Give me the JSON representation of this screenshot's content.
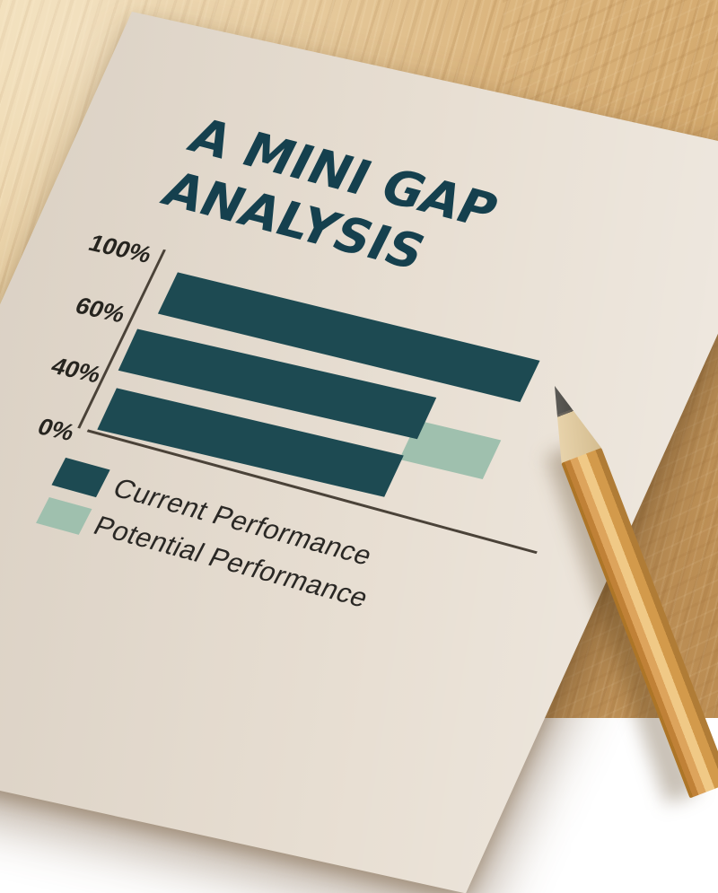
{
  "scene": {
    "objects": [
      "cream paper sheet lying at an angle on a wooden desk",
      "sharpened wooden pencil pointing at the end of the top bar"
    ],
    "desk_wood_color": "#dbb57e",
    "paper_color": "#e8dfd3",
    "pencil_wood_color": "#dda45c",
    "pencil_tip_color": "#3d3b36"
  },
  "title": {
    "line1": "A MINI GAP",
    "line2": "ANALYSIS",
    "color": "#15404e"
  },
  "chart_data": {
    "type": "bar",
    "orientation": "horizontal",
    "title": "A MINI GAP ANALYSIS",
    "y_axis_tick_labels": [
      "100%",
      "60%",
      "40%",
      "0%"
    ],
    "x_axis_shown": "baseline only, no tick labels",
    "grid": false,
    "axis_range_pct": [
      0,
      100
    ],
    "bars": [
      {
        "series": "Current Performance",
        "pct": 100
      },
      {
        "series": "Current Performance",
        "pct": 82
      },
      {
        "series": "Current Performance",
        "pct": 79
      }
    ],
    "potential_segment": {
      "series": "Potential Performance",
      "attached_to_bar_index": 1,
      "start_pct": 80,
      "end_pct": 103,
      "note": "light sage block tucked under the end of a dark bar, offset down-right"
    },
    "colors": {
      "current": "#1d4a52",
      "potential": "#9fc0ae"
    },
    "legend_position": "bottom-left"
  },
  "legend": {
    "items": [
      {
        "label": "Current Performance",
        "color": "#1d4a52"
      },
      {
        "label": "Potential Performance",
        "color": "#9fc0ae"
      }
    ]
  }
}
